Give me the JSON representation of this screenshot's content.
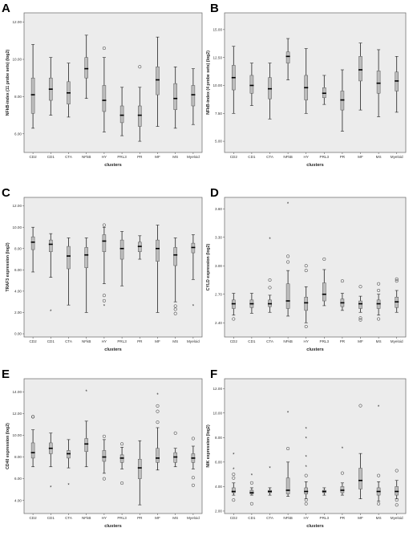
{
  "chart_data": [
    {
      "letter": "A",
      "type": "boxplot",
      "xlabel": "clusters",
      "ylabel": "NFkB-index (11 probe sets) (log2)",
      "ylim": [
        5.0,
        12.5
      ],
      "yticks": [
        {
          "v": 6,
          "label": "6.00"
        },
        {
          "v": 8,
          "label": "8.00"
        },
        {
          "v": 10,
          "label": "10.00"
        },
        {
          "v": 12,
          "label": "12.00"
        }
      ],
      "categories": [
        "CD2",
        "CD1",
        "CTA",
        "NFkB",
        "HY",
        "PRL3",
        "PR",
        "MF",
        "MS",
        "Myeloid"
      ],
      "boxes": [
        {
          "wlo": 6.3,
          "q1": 7.1,
          "med": 8.1,
          "q3": 9.0,
          "whi": 10.8,
          "outliers": []
        },
        {
          "wlo": 7.0,
          "q1": 7.8,
          "med": 8.4,
          "q3": 9.0,
          "whi": 10.1,
          "outliers": []
        },
        {
          "wlo": 6.9,
          "q1": 7.6,
          "med": 8.2,
          "q3": 8.8,
          "whi": 9.8,
          "outliers": []
        },
        {
          "wlo": 7.9,
          "q1": 9.0,
          "med": 9.5,
          "q3": 10.1,
          "whi": 11.3,
          "outliers": []
        },
        {
          "wlo": 6.1,
          "q1": 7.2,
          "med": 7.8,
          "q3": 8.6,
          "whi": 10.1,
          "outliers": [
            10.6
          ]
        },
        {
          "wlo": 5.9,
          "q1": 6.6,
          "med": 7.0,
          "q3": 7.5,
          "whi": 8.5,
          "outliers": []
        },
        {
          "wlo": 5.6,
          "q1": 6.4,
          "med": 7.0,
          "q3": 7.5,
          "whi": 8.5,
          "outliers": [
            9.6
          ]
        },
        {
          "wlo": 6.4,
          "q1": 8.1,
          "med": 8.9,
          "q3": 9.6,
          "whi": 11.2,
          "outliers": []
        },
        {
          "wlo": 6.3,
          "q1": 7.3,
          "med": 7.9,
          "q3": 8.7,
          "whi": 9.6,
          "outliers": []
        },
        {
          "wlo": 6.5,
          "q1": 7.5,
          "med": 8.1,
          "q3": 8.6,
          "whi": 9.5,
          "outliers": []
        }
      ]
    },
    {
      "letter": "B",
      "type": "boxplot",
      "xlabel": "clusters",
      "ylabel": "NFkB-index (4 probe sets) (log2)",
      "ylim": [
        4.0,
        16.5
      ],
      "yticks": [
        {
          "v": 5,
          "label": "5.00"
        },
        {
          "v": 7.5,
          "label": "7.50"
        },
        {
          "v": 10,
          "label": "10.00"
        },
        {
          "v": 12.5,
          "label": "12.50"
        },
        {
          "v": 15,
          "label": "15.00"
        }
      ],
      "categories": [
        "CD2",
        "CD1",
        "CTA",
        "NFkB",
        "HY",
        "PRL3",
        "PR",
        "MF",
        "MS",
        "Myeloid"
      ],
      "boxes": [
        {
          "wlo": 7.5,
          "q1": 9.6,
          "med": 10.7,
          "q3": 11.8,
          "whi": 13.5,
          "outliers": []
        },
        {
          "wlo": 8.2,
          "q1": 9.3,
          "med": 10.0,
          "q3": 10.9,
          "whi": 12.0,
          "outliers": []
        },
        {
          "wlo": 7.0,
          "q1": 8.8,
          "med": 9.7,
          "q3": 10.7,
          "whi": 12.0,
          "outliers": []
        },
        {
          "wlo": 10.5,
          "q1": 12.0,
          "med": 12.6,
          "q3": 13.0,
          "whi": 14.2,
          "outliers": []
        },
        {
          "wlo": 7.5,
          "q1": 8.7,
          "med": 9.8,
          "q3": 10.9,
          "whi": 13.3,
          "outliers": []
        },
        {
          "wlo": 8.3,
          "q1": 8.9,
          "med": 9.3,
          "q3": 9.8,
          "whi": 10.9,
          "outliers": []
        },
        {
          "wlo": 5.9,
          "q1": 7.8,
          "med": 8.7,
          "q3": 9.5,
          "whi": 11.4,
          "outliers": []
        },
        {
          "wlo": 7.8,
          "q1": 10.4,
          "med": 11.4,
          "q3": 12.6,
          "whi": 13.8,
          "outliers": []
        },
        {
          "wlo": 7.2,
          "q1": 9.3,
          "med": 10.2,
          "q3": 11.3,
          "whi": 13.2,
          "outliers": []
        },
        {
          "wlo": 7.6,
          "q1": 9.5,
          "med": 10.4,
          "q3": 11.2,
          "whi": 12.6,
          "outliers": []
        }
      ]
    },
    {
      "letter": "C",
      "type": "boxplot",
      "xlabel": "clusters",
      "ylabel": "TRAF3 expression (log2)",
      "ylim": [
        -0.3,
        12.8
      ],
      "yticks": [
        {
          "v": 0,
          "label": "0.00"
        },
        {
          "v": 2,
          "label": "2.00"
        },
        {
          "v": 4,
          "label": "4.00"
        },
        {
          "v": 6,
          "label": "6.00"
        },
        {
          "v": 8,
          "label": "8.00"
        },
        {
          "v": 10,
          "label": "10.00"
        },
        {
          "v": 12,
          "label": "12.00"
        }
      ],
      "categories": [
        "CD2",
        "CD1",
        "CTA",
        "NFkB",
        "HY",
        "PRL3",
        "PR",
        "MF",
        "MS",
        "Myeloid"
      ],
      "boxes": [
        {
          "wlo": 5.8,
          "q1": 7.9,
          "med": 8.6,
          "q3": 9.1,
          "whi": 10.0,
          "outliers": []
        },
        {
          "wlo": 5.3,
          "q1": 7.7,
          "med": 8.4,
          "q3": 8.8,
          "whi": 9.4,
          "outliers": [
            2.1
          ]
        },
        {
          "wlo": 2.7,
          "q1": 6.1,
          "med": 7.3,
          "q3": 8.2,
          "whi": 9.0,
          "outliers": []
        },
        {
          "wlo": 2.0,
          "q1": 6.2,
          "med": 7.4,
          "q3": 8.1,
          "whi": 9.0,
          "outliers": []
        },
        {
          "wlo": 4.7,
          "q1": 7.7,
          "med": 8.7,
          "q3": 9.3,
          "whi": 10.0,
          "outliers": [
            10.2,
            3.6,
            3.1,
            2.6
          ]
        },
        {
          "wlo": 4.5,
          "q1": 7.0,
          "med": 8.0,
          "q3": 8.8,
          "whi": 9.6,
          "outliers": []
        },
        {
          "wlo": 7.0,
          "q1": 7.7,
          "med": 8.2,
          "q3": 8.6,
          "whi": 9.2,
          "outliers": []
        },
        {
          "wlo": 2.0,
          "q1": 6.8,
          "med": 8.0,
          "q3": 8.8,
          "whi": 10.2,
          "outliers": []
        },
        {
          "wlo": 3.0,
          "q1": 6.4,
          "med": 7.4,
          "q3": 8.1,
          "whi": 9.0,
          "outliers": [
            2.6,
            2.3,
            1.9
          ]
        },
        {
          "wlo": 5.1,
          "q1": 7.6,
          "med": 8.1,
          "q3": 8.5,
          "whi": 9.3,
          "outliers": [
            2.6
          ]
        }
      ]
    },
    {
      "letter": "D",
      "type": "boxplot",
      "xlabel": "clusters",
      "ylabel": "CYLD expression (log2)",
      "ylim": [
        2.25,
        3.72
      ],
      "yticks": [
        {
          "v": 2.4,
          "label": "2.40"
        },
        {
          "v": 2.7,
          "label": "2.70"
        },
        {
          "v": 3.0,
          "label": "3.00"
        },
        {
          "v": 3.3,
          "label": "3.30"
        },
        {
          "v": 3.6,
          "label": "3.60"
        }
      ],
      "categories": [
        "CD2",
        "CD1",
        "CTA",
        "NFkB",
        "HY",
        "PRL3",
        "PR",
        "MF",
        "MS",
        "Myeloid"
      ],
      "boxes": [
        {
          "wlo": 2.48,
          "q1": 2.55,
          "med": 2.6,
          "q3": 2.64,
          "whi": 2.71,
          "outliers": [
            2.44
          ]
        },
        {
          "wlo": 2.5,
          "q1": 2.56,
          "med": 2.6,
          "q3": 2.64,
          "whi": 2.71,
          "outliers": []
        },
        {
          "wlo": 2.51,
          "q1": 2.57,
          "med": 2.6,
          "q3": 2.64,
          "whi": 2.69,
          "outliers": [
            2.77,
            2.85,
            3.28
          ]
        },
        {
          "wlo": 2.47,
          "q1": 2.55,
          "med": 2.63,
          "q3": 2.81,
          "whi": 2.95,
          "outliers": [
            3.04,
            3.1,
            3.65
          ]
        },
        {
          "wlo": 2.4,
          "q1": 2.53,
          "med": 2.61,
          "q3": 2.67,
          "whi": 2.78,
          "outliers": [
            2.36,
            2.95,
            3.0
          ]
        },
        {
          "wlo": 2.58,
          "q1": 2.63,
          "med": 2.7,
          "q3": 2.82,
          "whi": 2.96,
          "outliers": [
            3.07
          ]
        },
        {
          "wlo": 2.53,
          "q1": 2.57,
          "med": 2.61,
          "q3": 2.65,
          "whi": 2.71,
          "outliers": [
            2.84
          ]
        },
        {
          "wlo": 2.51,
          "q1": 2.55,
          "med": 2.6,
          "q3": 2.63,
          "whi": 2.68,
          "outliers": [
            2.45,
            2.43,
            2.78
          ]
        },
        {
          "wlo": 2.48,
          "q1": 2.55,
          "med": 2.6,
          "q3": 2.64,
          "whi": 2.7,
          "outliers": [
            2.44,
            2.74,
            2.81
          ]
        },
        {
          "wlo": 2.51,
          "q1": 2.56,
          "med": 2.62,
          "q3": 2.67,
          "whi": 2.74,
          "outliers": [
            2.84,
            2.86
          ]
        }
      ]
    },
    {
      "letter": "E",
      "type": "boxplot",
      "xlabel": "clusters",
      "ylabel": "CD40 expression (log2)",
      "ylim": [
        2.8,
        15.2
      ],
      "yticks": [
        {
          "v": 4,
          "label": "4.00"
        },
        {
          "v": 6,
          "label": "6.00"
        },
        {
          "v": 8,
          "label": "8.00"
        },
        {
          "v": 10,
          "label": "10.00"
        },
        {
          "v": 12,
          "label": "12.00"
        },
        {
          "v": 14,
          "label": "14.00"
        }
      ],
      "categories": [
        "CD2",
        "CD1",
        "CTA",
        "NFkB",
        "HY",
        "PRL3",
        "PR",
        "MF",
        "MS",
        "Myeloid"
      ],
      "boxes": [
        {
          "wlo": 7.1,
          "q1": 7.9,
          "med": 8.4,
          "q3": 9.3,
          "whi": 10.5,
          "outliers": [
            11.7,
            11.7
          ]
        },
        {
          "wlo": 7.1,
          "q1": 8.3,
          "med": 8.8,
          "q3": 9.3,
          "whi": 10.2,
          "outliers": [
            5.2
          ]
        },
        {
          "wlo": 7.0,
          "q1": 7.9,
          "med": 8.3,
          "q3": 8.6,
          "whi": 9.6,
          "outliers": [
            5.4
          ]
        },
        {
          "wlo": 7.1,
          "q1": 8.5,
          "med": 9.2,
          "q3": 9.7,
          "whi": 11.3,
          "outliers": [
            14.0
          ]
        },
        {
          "wlo": 6.5,
          "q1": 7.6,
          "med": 8.0,
          "q3": 8.6,
          "whi": 9.6,
          "outliers": [
            6.0,
            9.9
          ]
        },
        {
          "wlo": 6.9,
          "q1": 7.5,
          "med": 7.9,
          "q3": 8.2,
          "whi": 8.9,
          "outliers": [
            5.6,
            9.2
          ]
        },
        {
          "wlo": 3.6,
          "q1": 6.0,
          "med": 7.0,
          "q3": 7.8,
          "whi": 9.5,
          "outliers": []
        },
        {
          "wlo": 6.8,
          "q1": 7.5,
          "med": 7.9,
          "q3": 8.8,
          "whi": 10.7,
          "outliers": [
            11.2,
            12.2,
            12.7,
            13.7
          ]
        },
        {
          "wlo": 7.1,
          "q1": 7.5,
          "med": 8.0,
          "q3": 8.4,
          "whi": 8.8,
          "outliers": [
            10.2
          ]
        },
        {
          "wlo": 6.9,
          "q1": 7.5,
          "med": 7.9,
          "q3": 8.3,
          "whi": 9.0,
          "outliers": [
            5.4,
            6.1,
            9.7
          ]
        }
      ]
    },
    {
      "letter": "F",
      "type": "boxplot",
      "xlabel": "clusters",
      "ylabel": "NIK expression (log2)",
      "ylim": [
        1.8,
        12.8
      ],
      "yticks": [
        {
          "v": 2,
          "label": "2.00"
        },
        {
          "v": 4,
          "label": "4.00"
        },
        {
          "v": 6,
          "label": "6.00"
        },
        {
          "v": 8,
          "label": "8.00"
        },
        {
          "v": 10,
          "label": "10.00"
        },
        {
          "v": 12,
          "label": "12.00"
        }
      ],
      "categories": [
        "CD2",
        "CD1",
        "CTA",
        "NFkB",
        "HY",
        "PRL3",
        "PR",
        "MF",
        "MS",
        "Myeloid"
      ],
      "boxes": [
        {
          "wlo": 3.3,
          "q1": 3.5,
          "med": 3.6,
          "q3": 3.9,
          "whi": 4.3,
          "outliers": [
            4.7,
            5.0,
            5.4,
            6.6,
            2.9
          ]
        },
        {
          "wlo": 3.3,
          "q1": 3.4,
          "med": 3.5,
          "q3": 3.7,
          "whi": 3.9,
          "outliers": [
            4.3,
            4.9,
            2.6
          ]
        },
        {
          "wlo": 3.3,
          "q1": 3.5,
          "med": 3.6,
          "q3": 3.7,
          "whi": 3.9,
          "outliers": [
            5.5
          ]
        },
        {
          "wlo": 3.2,
          "q1": 3.4,
          "med": 3.7,
          "q3": 4.7,
          "whi": 6.0,
          "outliers": [
            7.1,
            10.0
          ]
        },
        {
          "wlo": 3.0,
          "q1": 3.4,
          "med": 3.6,
          "q3": 3.9,
          "whi": 4.4,
          "outliers": [
            4.9,
            5.6,
            6.4,
            7.9,
            8.7,
            2.9,
            2.6
          ]
        },
        {
          "wlo": 3.3,
          "q1": 3.5,
          "med": 3.6,
          "q3": 3.7,
          "whi": 3.9,
          "outliers": []
        },
        {
          "wlo": 3.3,
          "q1": 3.5,
          "med": 3.7,
          "q3": 4.0,
          "whi": 4.3,
          "outliers": [
            5.1,
            7.1
          ]
        },
        {
          "wlo": 3.0,
          "q1": 3.8,
          "med": 4.5,
          "q3": 5.5,
          "whi": 6.7,
          "outliers": [
            10.6
          ]
        },
        {
          "wlo": 2.8,
          "q1": 3.3,
          "med": 3.6,
          "q3": 3.9,
          "whi": 4.4,
          "outliers": [
            4.9,
            10.5,
            2.6
          ]
        },
        {
          "wlo": 3.0,
          "q1": 3.3,
          "med": 3.6,
          "q3": 4.0,
          "whi": 4.5,
          "outliers": [
            5.3,
            2.9,
            2.5
          ]
        }
      ]
    }
  ]
}
